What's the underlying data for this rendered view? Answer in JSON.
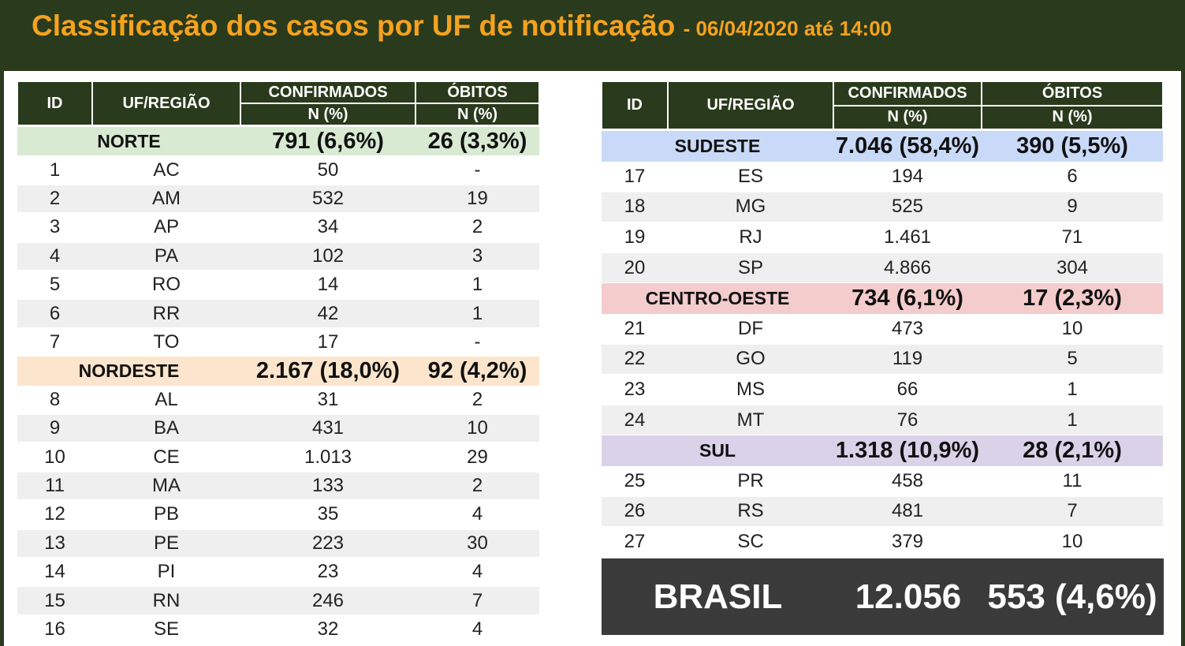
{
  "header": {
    "title": "Classificação dos casos por UF de notificação",
    "subtitle": "- 06/04/2020 até 14:00"
  },
  "tables": [
    {
      "columns": {
        "id": "ID",
        "uf": "UF/REGIÃO",
        "confirmed": "CONFIRMADOS",
        "deaths": "ÓBITOS",
        "confirmed_unit": "N (%)",
        "deaths_unit": "N (%)"
      },
      "groups": [
        {
          "region": "NORTE",
          "confirmed": "791 (6,6%)",
          "deaths": "26 (3,3%)",
          "color": "#d9ead3",
          "rows": [
            [
              "1",
              "AC",
              "50",
              "-"
            ],
            [
              "2",
              "AM",
              "532",
              "19"
            ],
            [
              "3",
              "AP",
              "34",
              "2"
            ],
            [
              "4",
              "PA",
              "102",
              "3"
            ],
            [
              "5",
              "RO",
              "14",
              "1"
            ],
            [
              "6",
              "RR",
              "42",
              "1"
            ],
            [
              "7",
              "TO",
              "17",
              "-"
            ]
          ]
        },
        {
          "region": "NORDESTE",
          "confirmed": "2.167 (18,0%)",
          "deaths": "92 (4,2%)",
          "color": "#fce5cd",
          "rows": [
            [
              "8",
              "AL",
              "31",
              "2"
            ],
            [
              "9",
              "BA",
              "431",
              "10"
            ],
            [
              "10",
              "CE",
              "1.013",
              "29"
            ],
            [
              "11",
              "MA",
              "133",
              "2"
            ],
            [
              "12",
              "PB",
              "35",
              "4"
            ],
            [
              "13",
              "PE",
              "223",
              "30"
            ],
            [
              "14",
              "PI",
              "23",
              "4"
            ],
            [
              "15",
              "RN",
              "246",
              "7"
            ],
            [
              "16",
              "SE",
              "32",
              "4"
            ]
          ]
        }
      ]
    },
    {
      "columns": {
        "id": "ID",
        "uf": "UF/REGIÃO",
        "confirmed": "CONFIRMADOS",
        "deaths": "ÓBITOS",
        "confirmed_unit": "N (%)",
        "deaths_unit": "N (%)"
      },
      "groups": [
        {
          "region": "SUDESTE",
          "confirmed": "7.046 (58,4%)",
          "deaths": "390 (5,5%)",
          "color": "#c9daf8",
          "rows": [
            [
              "17",
              "ES",
              "194",
              "6"
            ],
            [
              "18",
              "MG",
              "525",
              "9"
            ],
            [
              "19",
              "RJ",
              "1.461",
              "71"
            ],
            [
              "20",
              "SP",
              "4.866",
              "304"
            ]
          ]
        },
        {
          "region": "CENTRO-OESTE",
          "confirmed": "734 (6,1%)",
          "deaths": "17 (2,3%)",
          "color": "#f4cccc",
          "rows": [
            [
              "21",
              "DF",
              "473",
              "10"
            ],
            [
              "22",
              "GO",
              "119",
              "5"
            ],
            [
              "23",
              "MS",
              "66",
              "1"
            ],
            [
              "24",
              "MT",
              "76",
              "1"
            ]
          ]
        },
        {
          "region": "SUL",
          "confirmed": "1.318 (10,9%)",
          "deaths": "28 (2,1%)",
          "color": "#d9d2e9",
          "rows": [
            [
              "25",
              "PR",
              "458",
              "11"
            ],
            [
              "26",
              "RS",
              "481",
              "7"
            ],
            [
              "27",
              "SC",
              "379",
              "10"
            ]
          ]
        }
      ]
    }
  ],
  "total": {
    "label": "BRASIL",
    "confirmed": "12.056",
    "deaths": "553 (4,6%)"
  }
}
